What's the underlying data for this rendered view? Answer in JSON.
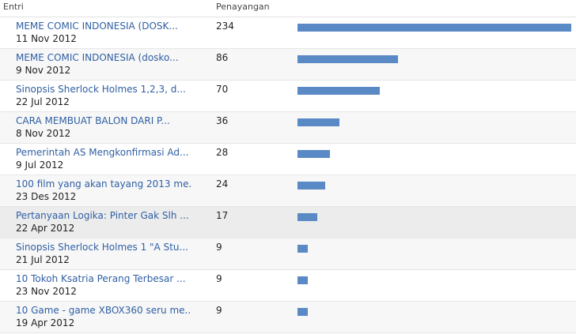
{
  "header": {
    "entri_label": "Entri",
    "views_label": "Penayangan"
  },
  "bar_color": "#5a8ac6",
  "max_views": 234,
  "rows": [
    {
      "title": "MEME COMIC INDONESIA (DOSK...",
      "date": "11 Nov 2012",
      "views": 234
    },
    {
      "title": "MEME COMIC INDONESIA (dosko...",
      "date": "9 Nov 2012",
      "views": 86
    },
    {
      "title": "Sinopsis Sherlock Holmes 1,2,3, d...",
      "date": "22 Jul 2012",
      "views": 70
    },
    {
      "title": "CARA MEMBUAT BALON DARI P...",
      "date": "8 Nov 2012",
      "views": 36
    },
    {
      "title": "Pemerintah AS Mengkonfirmasi Ad...",
      "date": "9 Jul 2012",
      "views": 28
    },
    {
      "title": "100 film yang akan tayang 2013 me...",
      "date": "23 Des 2012",
      "views": 24
    },
    {
      "title": "Pertanyaan Logika: Pinter Gak Slh ...",
      "date": "22 Apr 2012",
      "views": 17
    },
    {
      "title": "Sinopsis Sherlock Holmes 1 \"A Stu...",
      "date": "21 Jul 2012",
      "views": 9
    },
    {
      "title": "10 Tokoh Ksatria Perang Terbesar ...",
      "date": "23 Nov 2012",
      "views": 9
    },
    {
      "title": "10 Game - game XBOX360 seru me...",
      "date": "19 Apr 2012",
      "views": 9
    }
  ]
}
